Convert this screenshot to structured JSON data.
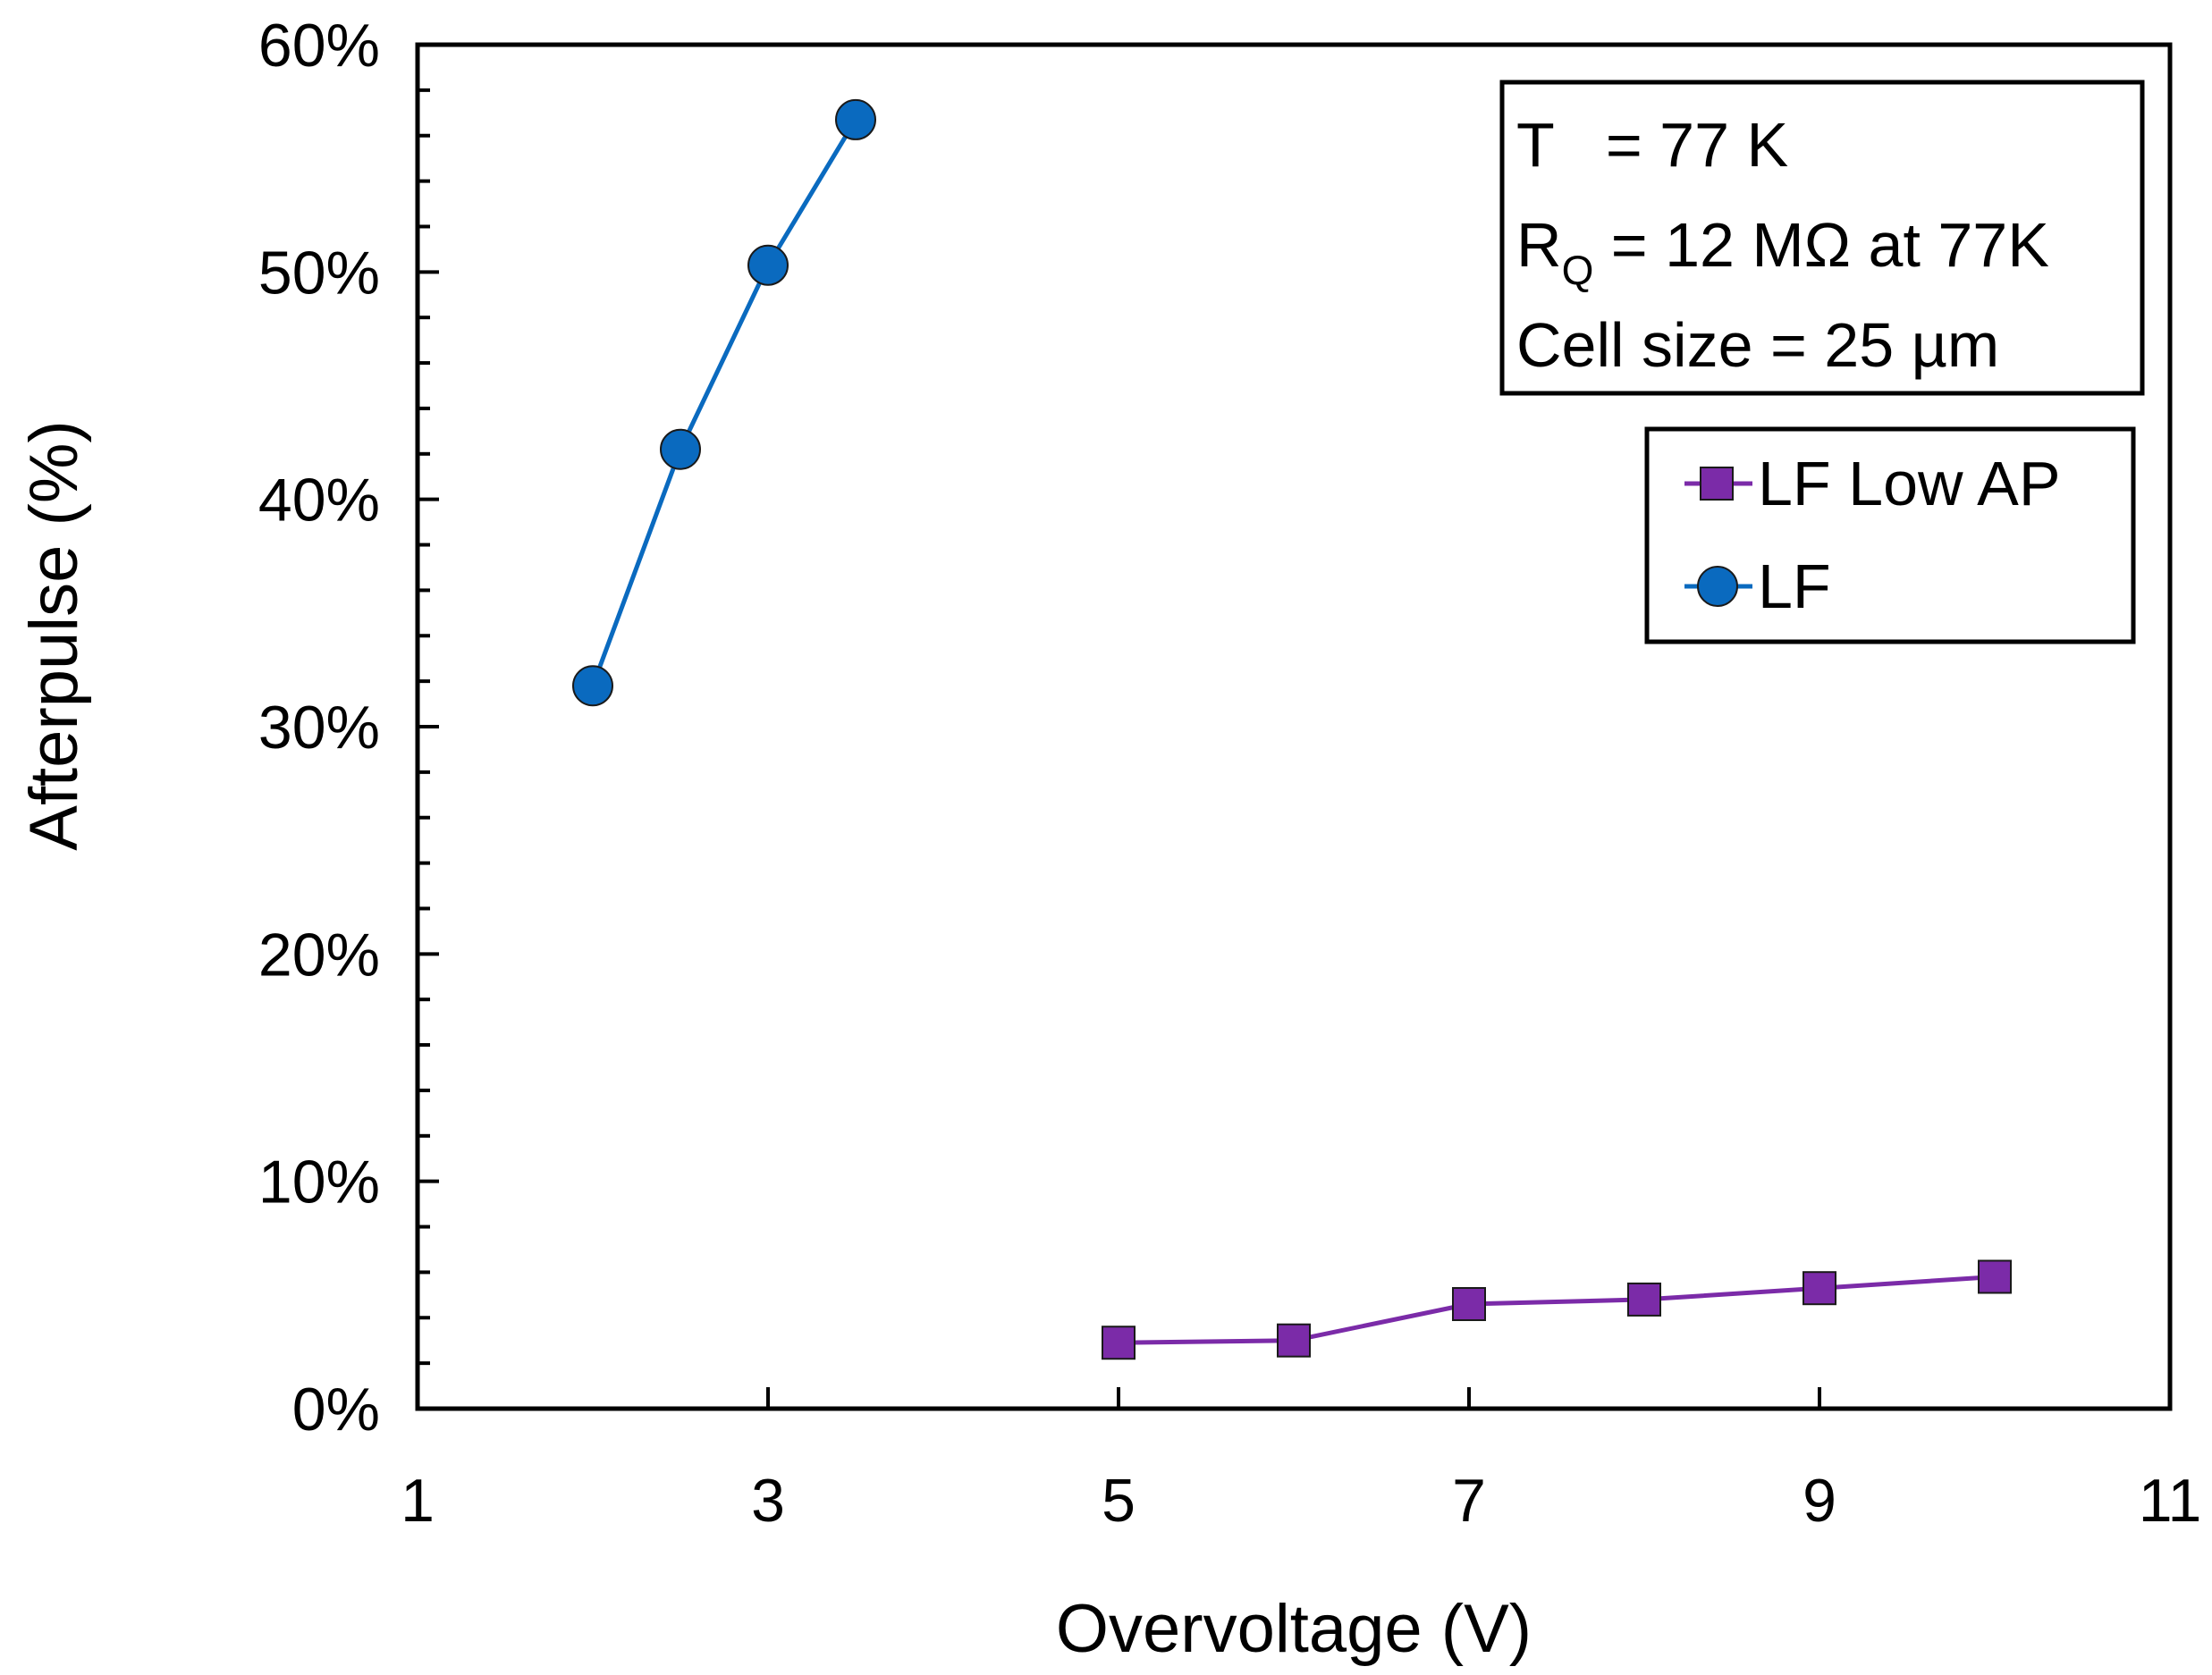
{
  "chart_data": {
    "type": "line",
    "title": "",
    "xlabel": "Overvoltage (V)",
    "ylabel": "Afterpulse (%)",
    "xlim": [
      1,
      11
    ],
    "ylim": [
      0,
      60
    ],
    "x_ticks": [
      1,
      3,
      5,
      7,
      9,
      11
    ],
    "x_tick_labels": [
      "1",
      "3",
      "5",
      "7",
      "9",
      "11"
    ],
    "y_ticks": [
      0,
      10,
      20,
      30,
      40,
      50,
      60
    ],
    "y_tick_labels": [
      "0%",
      "10%",
      "20%",
      "30%",
      "40%",
      "50%",
      "60%"
    ],
    "y_minor_step": 2,
    "grid": false,
    "legend_position": "top-right",
    "series": [
      {
        "name": "LF Low AP",
        "marker": "square",
        "color": "#7B2BA8",
        "line_color": "#7B2BA8",
        "x": [
          5,
          6,
          7,
          8,
          9,
          10
        ],
        "values": [
          2.9,
          3.0,
          4.6,
          4.8,
          5.3,
          5.8
        ]
      },
      {
        "name": "LF",
        "marker": "circle",
        "color": "#0A6ABF",
        "line_color": "#0A6ABF",
        "x": [
          2,
          2.5,
          3,
          3.5
        ],
        "values": [
          31.8,
          42.2,
          50.3,
          56.7
        ]
      }
    ],
    "annotations": {
      "temperature_line": "T   = 77 K",
      "rq_prefix": "R",
      "rq_subscript": "Q",
      "rq_value": " = 12 MΩ at 77K",
      "cell_size_line": "Cell size = 25 µm"
    }
  }
}
